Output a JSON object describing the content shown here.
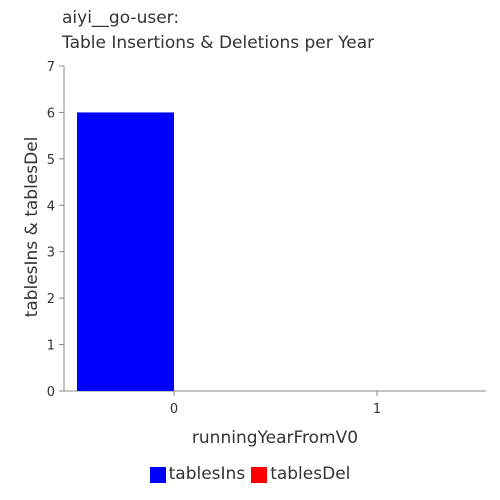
{
  "title_lines": [
    "aiyi__go-user:",
    "Table Insertions & Deletions per Year"
  ],
  "chart_data": {
    "type": "bar",
    "title": "aiyi__go-user:\nTable Insertions & Deletions per Year",
    "xlabel": "runningYearFromV0",
    "ylabel": "tablesIns & tablesDel",
    "categories": [
      "0",
      "1"
    ],
    "series": [
      {
        "name": "tablesIns",
        "values": [
          6,
          0
        ],
        "color": "#0000ff"
      },
      {
        "name": "tablesDel",
        "values": [
          0,
          0
        ],
        "color": "#ff0000"
      }
    ],
    "ylim": [
      0,
      7
    ],
    "yticks": [
      0,
      1,
      2,
      3,
      4,
      5,
      6,
      7
    ],
    "grid": false,
    "legend_position": "bottom"
  }
}
